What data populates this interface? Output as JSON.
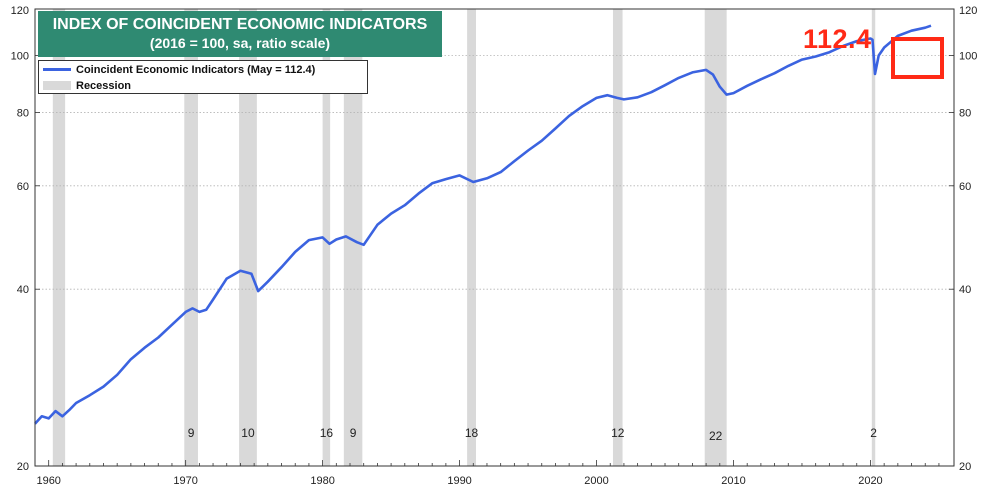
{
  "title_line1": "INDEX OF COINCIDENT ECONOMIC INDICATORS",
  "title_line2": "(2016 = 100, sa, ratio scale)",
  "legend": {
    "series_label": "Coincident Economic Indicators (May = 112.4)",
    "recession_label": "Recession"
  },
  "callout": "112.4",
  "colors": {
    "line": "#3b63e0",
    "recession": "#d9d9d9",
    "accent": "#ff2a16",
    "title_bg": "#2f8a72"
  },
  "chart_data": {
    "type": "line",
    "title": "INDEX OF COINCIDENT ECONOMIC INDICATORS",
    "subtitle": "(2016 = 100, sa, ratio scale)",
    "xlim": [
      1959.0,
      2026.1
    ],
    "ylim": [
      20,
      120
    ],
    "yscale": "log",
    "x_ticks": [
      1960,
      1970,
      1980,
      1990,
      2000,
      2010,
      2020
    ],
    "y_ticks": [
      20,
      40,
      60,
      80,
      100,
      120
    ],
    "grid": true,
    "legend_position": "top-left",
    "series": [
      {
        "name": "Coincident Economic Indicators (May = 112.4)",
        "points": [
          [
            1959.0,
            23.6
          ],
          [
            1959.5,
            24.3
          ],
          [
            1960.0,
            24.1
          ],
          [
            1960.5,
            24.8
          ],
          [
            1961.0,
            24.3
          ],
          [
            1961.5,
            24.9
          ],
          [
            1962.0,
            25.6
          ],
          [
            1963.0,
            26.4
          ],
          [
            1964.0,
            27.3
          ],
          [
            1965.0,
            28.6
          ],
          [
            1966.0,
            30.4
          ],
          [
            1967.0,
            31.8
          ],
          [
            1968.0,
            33.1
          ],
          [
            1969.0,
            34.8
          ],
          [
            1970.0,
            36.6
          ],
          [
            1970.5,
            37.1
          ],
          [
            1971.0,
            36.6
          ],
          [
            1971.5,
            36.9
          ],
          [
            1972.0,
            38.4
          ],
          [
            1973.0,
            41.7
          ],
          [
            1974.0,
            43.0
          ],
          [
            1974.8,
            42.5
          ],
          [
            1975.3,
            39.7
          ],
          [
            1976.0,
            41.2
          ],
          [
            1977.0,
            43.6
          ],
          [
            1978.0,
            46.3
          ],
          [
            1979.0,
            48.5
          ],
          [
            1980.0,
            49.0
          ],
          [
            1980.5,
            47.8
          ],
          [
            1981.0,
            48.6
          ],
          [
            1981.7,
            49.2
          ],
          [
            1982.5,
            48.1
          ],
          [
            1983.0,
            47.6
          ],
          [
            1984.0,
            51.5
          ],
          [
            1985.0,
            53.8
          ],
          [
            1986.0,
            55.6
          ],
          [
            1987.0,
            58.2
          ],
          [
            1988.0,
            60.6
          ],
          [
            1989.0,
            61.6
          ],
          [
            1990.0,
            62.5
          ],
          [
            1991.0,
            60.9
          ],
          [
            1992.0,
            61.8
          ],
          [
            1993.0,
            63.3
          ],
          [
            1994.0,
            66.1
          ],
          [
            1995.0,
            68.9
          ],
          [
            1996.0,
            71.6
          ],
          [
            1997.0,
            75.1
          ],
          [
            1998.0,
            78.9
          ],
          [
            1999.0,
            82.0
          ],
          [
            2000.0,
            84.7
          ],
          [
            2000.8,
            85.6
          ],
          [
            2001.5,
            84.7
          ],
          [
            2002.0,
            84.2
          ],
          [
            2003.0,
            84.9
          ],
          [
            2004.0,
            86.6
          ],
          [
            2005.0,
            89.0
          ],
          [
            2006.0,
            91.6
          ],
          [
            2007.0,
            93.6
          ],
          [
            2008.0,
            94.5
          ],
          [
            2008.5,
            92.8
          ],
          [
            2009.0,
            88.5
          ],
          [
            2009.5,
            85.8
          ],
          [
            2010.0,
            86.3
          ],
          [
            2011.0,
            88.8
          ],
          [
            2012.0,
            91.1
          ],
          [
            2013.0,
            93.3
          ],
          [
            2014.0,
            96.0
          ],
          [
            2015.0,
            98.4
          ],
          [
            2016.0,
            99.6
          ],
          [
            2017.0,
            101.3
          ],
          [
            2018.0,
            103.8
          ],
          [
            2019.0,
            105.8
          ],
          [
            2020.0,
            106.9
          ],
          [
            2020.15,
            106.4
          ],
          [
            2020.33,
            93.0
          ],
          [
            2020.6,
            100.0
          ],
          [
            2021.0,
            103.2
          ],
          [
            2022.0,
            108.0
          ],
          [
            2023.0,
            110.2
          ],
          [
            2024.0,
            111.5
          ],
          [
            2024.42,
            112.4
          ]
        ]
      }
    ],
    "recessions": [
      {
        "start": 1960.3,
        "end": 1961.2,
        "label": ""
      },
      {
        "start": 1969.9,
        "end": 1970.9,
        "label": "9"
      },
      {
        "start": 1973.9,
        "end": 1975.2,
        "label": "10"
      },
      {
        "start": 1980.0,
        "end": 1980.55,
        "label": "16"
      },
      {
        "start": 1981.55,
        "end": 1982.9,
        "label": "9"
      },
      {
        "start": 1990.55,
        "end": 1991.2,
        "label": "18"
      },
      {
        "start": 2001.2,
        "end": 2001.9,
        "label": "12"
      },
      {
        "start": 2007.9,
        "end": 2009.5,
        "label": "22"
      },
      {
        "start": 2020.1,
        "end": 2020.35,
        "label": "2"
      }
    ]
  }
}
